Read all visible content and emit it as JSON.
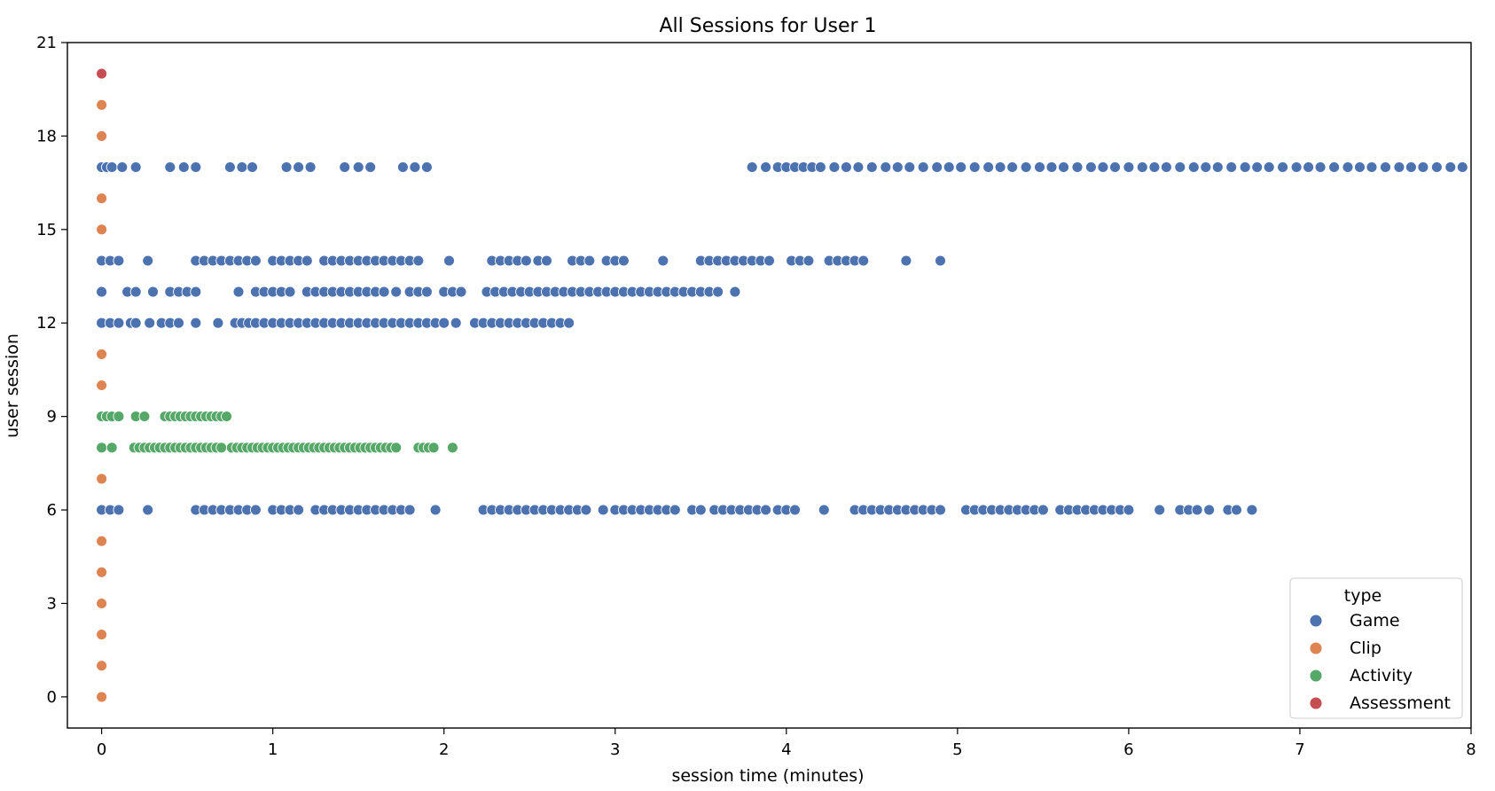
{
  "chart_data": {
    "type": "scatter",
    "title": "All Sessions for User 1",
    "xlabel": "session time (minutes)",
    "ylabel": "user session",
    "xlim": [
      -0.2,
      8
    ],
    "ylim": [
      -1,
      21
    ],
    "xticks": [
      0,
      1,
      2,
      3,
      4,
      5,
      6,
      7,
      8
    ],
    "yticks": [
      0,
      3,
      6,
      9,
      12,
      15,
      18,
      21
    ],
    "grid": false,
    "legend": {
      "title": "type",
      "position": "bottom-right"
    },
    "series": [
      {
        "name": "Game",
        "color": "#4c72b0",
        "rows": [
          {
            "y": 17,
            "x": [
              0,
              0.03,
              0.06,
              0.12,
              0.2,
              0.4,
              0.48,
              0.55,
              0.75,
              0.82,
              0.88,
              1.08,
              1.15,
              1.22,
              1.42,
              1.5,
              1.57,
              1.76,
              1.83,
              1.9,
              3.8,
              3.88,
              3.95,
              4.0,
              4.05,
              4.1,
              4.15,
              4.2,
              4.28,
              4.35,
              4.42,
              4.5,
              4.58,
              4.65,
              4.72,
              4.8,
              4.88,
              4.95,
              5.02,
              5.1,
              5.18,
              5.25,
              5.32,
              5.4,
              5.48,
              5.55,
              5.62,
              5.7,
              5.78,
              5.85,
              5.92,
              6.0,
              6.08,
              6.15,
              6.22,
              6.3,
              6.38,
              6.45,
              6.52,
              6.6,
              6.68,
              6.75,
              6.82,
              6.9,
              6.98,
              7.05,
              7.12,
              7.2,
              7.28,
              7.35,
              7.42,
              7.5,
              7.58,
              7.65,
              7.72,
              7.8,
              7.88,
              7.95
            ]
          },
          {
            "y": 14,
            "x": [
              0,
              0.05,
              0.1,
              0.27,
              0.55,
              0.6,
              0.65,
              0.7,
              0.75,
              0.8,
              0.85,
              0.9,
              1.0,
              1.05,
              1.1,
              1.15,
              1.2,
              1.3,
              1.35,
              1.4,
              1.45,
              1.5,
              1.55,
              1.6,
              1.65,
              1.7,
              1.75,
              1.8,
              1.85,
              2.03,
              2.28,
              2.33,
              2.38,
              2.43,
              2.48,
              2.55,
              2.6,
              2.75,
              2.8,
              2.85,
              2.95,
              3.0,
              3.05,
              3.28,
              3.5,
              3.55,
              3.6,
              3.65,
              3.7,
              3.75,
              3.8,
              3.85,
              3.9,
              4.03,
              4.08,
              4.13,
              4.25,
              4.3,
              4.35,
              4.4,
              4.45,
              4.7,
              4.9
            ]
          },
          {
            "y": 13,
            "x": [
              0,
              0.15,
              0.2,
              0.3,
              0.4,
              0.45,
              0.5,
              0.55,
              0.8,
              0.9,
              0.95,
              1.0,
              1.05,
              1.1,
              1.2,
              1.25,
              1.3,
              1.35,
              1.4,
              1.45,
              1.5,
              1.55,
              1.6,
              1.65,
              1.72,
              1.8,
              1.85,
              1.9,
              2.0,
              2.05,
              2.1,
              2.25,
              2.3,
              2.35,
              2.4,
              2.45,
              2.5,
              2.55,
              2.6,
              2.65,
              2.7,
              2.75,
              2.8,
              2.85,
              2.9,
              2.95,
              3.0,
              3.05,
              3.1,
              3.15,
              3.2,
              3.25,
              3.3,
              3.35,
              3.4,
              3.45,
              3.5,
              3.55,
              3.6,
              3.7
            ]
          },
          {
            "y": 12,
            "x": [
              0,
              0.05,
              0.1,
              0.17,
              0.2,
              0.28,
              0.35,
              0.4,
              0.45,
              0.55,
              0.68,
              0.78,
              0.82,
              0.86,
              0.9,
              0.95,
              1.0,
              1.05,
              1.1,
              1.15,
              1.2,
              1.25,
              1.3,
              1.35,
              1.4,
              1.45,
              1.5,
              1.55,
              1.6,
              1.65,
              1.7,
              1.75,
              1.8,
              1.85,
              1.9,
              1.95,
              2.0,
              2.07,
              2.18,
              2.23,
              2.28,
              2.33,
              2.38,
              2.43,
              2.48,
              2.53,
              2.58,
              2.63,
              2.68,
              2.73
            ]
          },
          {
            "y": 6,
            "x": [
              0,
              0.05,
              0.1,
              0.27,
              0.55,
              0.6,
              0.65,
              0.7,
              0.75,
              0.8,
              0.85,
              0.9,
              1.0,
              1.05,
              1.1,
              1.15,
              1.25,
              1.3,
              1.35,
              1.4,
              1.45,
              1.5,
              1.55,
              1.6,
              1.65,
              1.7,
              1.75,
              1.8,
              1.95,
              2.23,
              2.28,
              2.33,
              2.38,
              2.43,
              2.48,
              2.53,
              2.58,
              2.63,
              2.68,
              2.73,
              2.78,
              2.83,
              2.93,
              3.0,
              3.05,
              3.1,
              3.15,
              3.2,
              3.25,
              3.3,
              3.35,
              3.45,
              3.5,
              3.58,
              3.63,
              3.68,
              3.73,
              3.78,
              3.83,
              3.88,
              3.95,
              4.0,
              4.05,
              4.22,
              4.4,
              4.45,
              4.5,
              4.55,
              4.6,
              4.65,
              4.7,
              4.75,
              4.8,
              4.85,
              4.9,
              5.05,
              5.1,
              5.15,
              5.2,
              5.25,
              5.3,
              5.35,
              5.4,
              5.45,
              5.5,
              5.6,
              5.65,
              5.7,
              5.75,
              5.8,
              5.85,
              5.9,
              5.95,
              6.0,
              6.18,
              6.3,
              6.35,
              6.4,
              6.47,
              6.58,
              6.63,
              6.72
            ]
          }
        ]
      },
      {
        "name": "Clip",
        "color": "#dd8452",
        "rows": [
          {
            "y": 0,
            "x": [
              0
            ]
          },
          {
            "y": 1,
            "x": [
              0
            ]
          },
          {
            "y": 2,
            "x": [
              0
            ]
          },
          {
            "y": 3,
            "x": [
              0
            ]
          },
          {
            "y": 4,
            "x": [
              0
            ]
          },
          {
            "y": 5,
            "x": [
              0
            ]
          },
          {
            "y": 7,
            "x": [
              0
            ]
          },
          {
            "y": 10,
            "x": [
              0
            ]
          },
          {
            "y": 11,
            "x": [
              0
            ]
          },
          {
            "y": 15,
            "x": [
              0
            ]
          },
          {
            "y": 16,
            "x": [
              0
            ]
          },
          {
            "y": 18,
            "x": [
              0
            ]
          },
          {
            "y": 19,
            "x": [
              0
            ]
          }
        ]
      },
      {
        "name": "Activity",
        "color": "#55a868",
        "rows": [
          {
            "y": 9,
            "x": [
              0,
              0.03,
              0.06,
              0.1,
              0.2,
              0.25,
              0.37,
              0.4,
              0.43,
              0.46,
              0.49,
              0.52,
              0.55,
              0.58,
              0.61,
              0.64,
              0.67,
              0.7,
              0.73
            ]
          },
          {
            "y": 8,
            "x": [
              0,
              0.06,
              0.19,
              0.22,
              0.25,
              0.28,
              0.31,
              0.34,
              0.37,
              0.4,
              0.43,
              0.46,
              0.49,
              0.52,
              0.55,
              0.58,
              0.61,
              0.64,
              0.67,
              0.7,
              0.76,
              0.79,
              0.82,
              0.85,
              0.88,
              0.91,
              0.94,
              0.97,
              1.0,
              1.03,
              1.06,
              1.09,
              1.12,
              1.15,
              1.18,
              1.21,
              1.24,
              1.27,
              1.3,
              1.33,
              1.36,
              1.39,
              1.42,
              1.45,
              1.48,
              1.51,
              1.54,
              1.57,
              1.6,
              1.63,
              1.66,
              1.69,
              1.72,
              1.85,
              1.88,
              1.91,
              1.94,
              2.05
            ]
          }
        ]
      },
      {
        "name": "Assessment",
        "color": "#c44e52",
        "rows": [
          {
            "y": 20,
            "x": [
              0
            ]
          }
        ]
      }
    ]
  }
}
